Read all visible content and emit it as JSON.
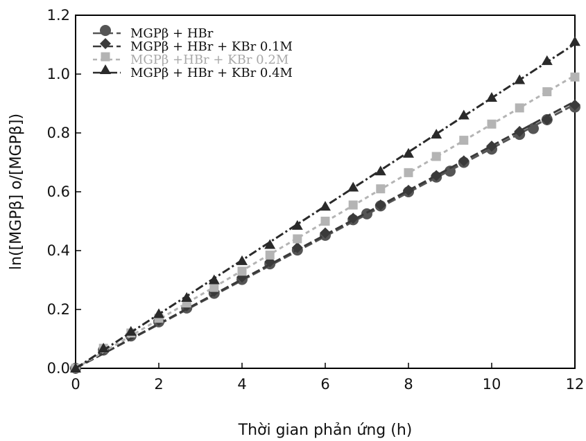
{
  "chart_data": {
    "type": "line",
    "xlabel": "Thời gian phản ứng (h)",
    "ylabel": "ln([MGPβ] o/[MGPβ])",
    "xlim": [
      0,
      12
    ],
    "ylim": [
      0,
      1.2
    ],
    "xticks": [
      "0",
      "2",
      "4",
      "6",
      "8",
      "10",
      "12"
    ],
    "yticks": [
      "0.0",
      "0.2",
      "0.4",
      "0.6",
      "0.8",
      "1.0",
      "1.2"
    ],
    "grid": false,
    "legend": "top-left",
    "series": [
      {
        "name": "MGPβ + HBr",
        "marker": "circle",
        "color": "#555555",
        "x": [
          0,
          0.67,
          1.33,
          2,
          2.67,
          3.33,
          4,
          4.67,
          5.33,
          6,
          6.67,
          7,
          7.33,
          8,
          8.67,
          9,
          9.33,
          10,
          10.67,
          11,
          11.33,
          12
        ],
        "y": [
          0.0,
          0.062,
          0.11,
          0.158,
          0.205,
          0.255,
          0.302,
          0.355,
          0.402,
          0.452,
          0.505,
          0.525,
          0.552,
          0.6,
          0.65,
          0.67,
          0.7,
          0.745,
          0.795,
          0.815,
          0.845,
          0.888
        ]
      },
      {
        "name": "MGPβ + HBr + KBr 0.1M",
        "marker": "diamond",
        "color": "#3a3a3a",
        "x": [
          0,
          0.67,
          1.33,
          2,
          2.67,
          3.33,
          4,
          4.67,
          5.33,
          6,
          6.67,
          7.33,
          8,
          8.67,
          9.33,
          10,
          10.67,
          11.33,
          12
        ],
        "y": [
          0.0,
          0.065,
          0.115,
          0.163,
          0.212,
          0.262,
          0.31,
          0.362,
          0.41,
          0.46,
          0.51,
          0.555,
          0.605,
          0.655,
          0.705,
          0.755,
          0.805,
          0.845,
          0.895
        ]
      },
      {
        "name": "MGPβ +HBr + KBr 0.2M",
        "marker": "square",
        "color": "#b4b4b4",
        "x": [
          0,
          0.67,
          1.33,
          2,
          2.67,
          3.33,
          4,
          4.67,
          5.33,
          6,
          6.67,
          7.33,
          8,
          8.67,
          9.33,
          10,
          10.67,
          11.33,
          12
        ],
        "y": [
          0.0,
          0.068,
          0.12,
          0.17,
          0.222,
          0.275,
          0.33,
          0.385,
          0.44,
          0.5,
          0.555,
          0.61,
          0.665,
          0.72,
          0.775,
          0.83,
          0.885,
          0.94,
          0.99
        ]
      },
      {
        "name": "MGPβ + HBr + KBr 0.4M",
        "marker": "triangle",
        "color": "#2a2a2a",
        "x": [
          0,
          0.67,
          1.33,
          2,
          2.67,
          3.33,
          4,
          4.67,
          5.33,
          6,
          6.67,
          7.33,
          8,
          8.67,
          9.33,
          10,
          10.67,
          11.33,
          12
        ],
        "y": [
          0.0,
          0.068,
          0.125,
          0.185,
          0.24,
          0.3,
          0.365,
          0.42,
          0.485,
          0.55,
          0.615,
          0.67,
          0.73,
          0.795,
          0.86,
          0.92,
          0.98,
          1.045,
          1.11
        ]
      }
    ]
  }
}
